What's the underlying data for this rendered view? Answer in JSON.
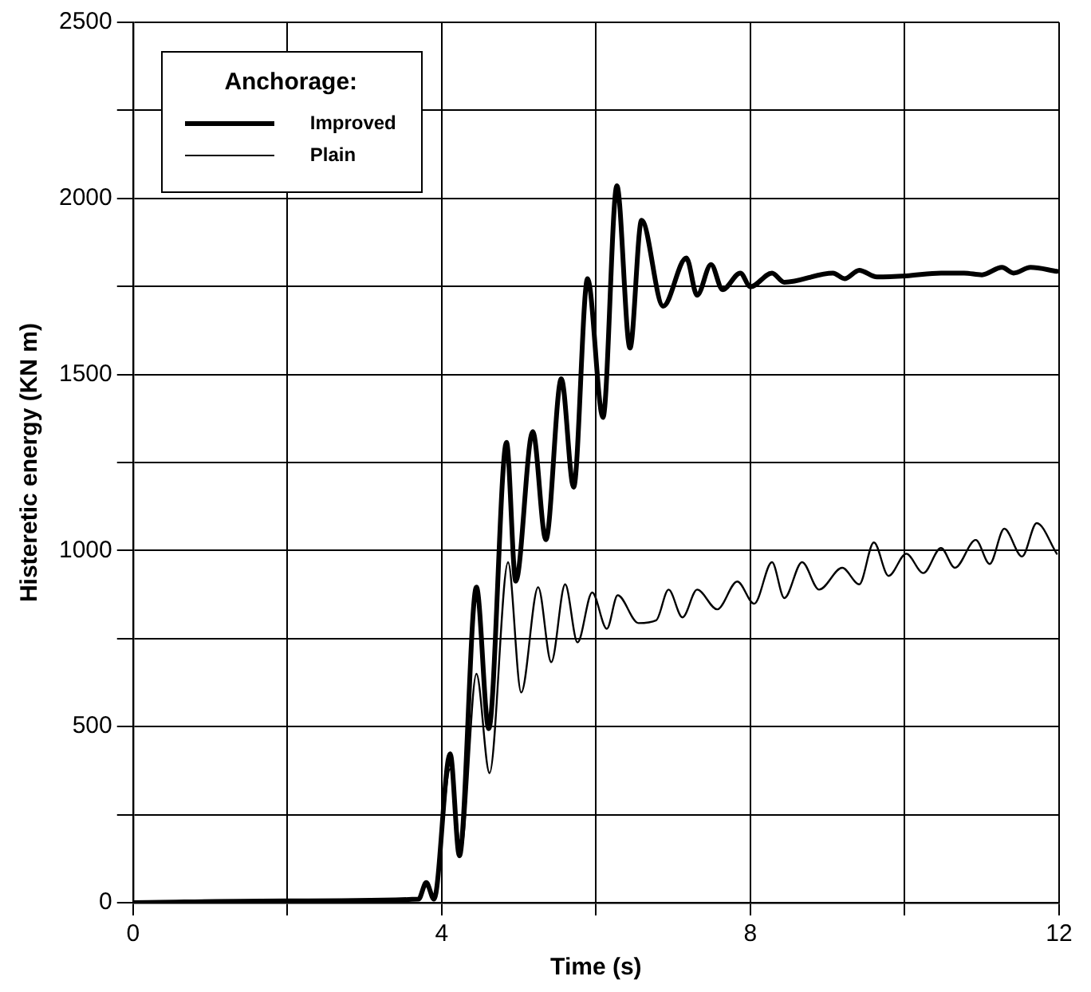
{
  "chart_data": {
    "type": "line",
    "xlabel": "Time (s)",
    "ylabel": "Histeretic energy (KN m)",
    "legend_title": "Anchorage:",
    "legend": "top left",
    "grid": true,
    "marker": "none",
    "line_style": "solid",
    "xlim": [
      0,
      12
    ],
    "xticks": [
      0,
      {
        "value": 2,
        "label": null
      },
      4,
      {
        "value": 6,
        "label": null
      },
      8,
      {
        "value": 10,
        "label": null
      },
      12
    ],
    "ylim": [
      0,
      2500
    ],
    "yticks": [
      0,
      {
        "value": 250,
        "label": null
      },
      500,
      {
        "value": 750,
        "label": null
      },
      1000,
      {
        "value": 1250,
        "label": null
      },
      1500,
      {
        "value": 1750,
        "label": null
      },
      2000,
      {
        "value": 2250,
        "label": null
      },
      2500
    ],
    "series": [
      {
        "name": "Improved",
        "color": "#000000",
        "x": [
          0,
          2,
          3.7,
          3.8,
          3.9,
          4.11,
          4.23,
          4.45,
          4.61,
          4.84,
          4.96,
          5.18,
          5.35,
          5.55,
          5.71,
          5.89,
          6.09,
          6.27,
          6.44,
          6.59,
          6.87,
          7.17,
          7.31,
          7.49,
          7.64,
          7.87,
          8.0,
          8.28,
          8.44,
          9.07,
          9.22,
          9.41,
          9.64,
          10.02,
          10.47,
          10.77,
          11.0,
          11.26,
          11.41,
          11.63,
          11.97
        ],
        "values": [
          0,
          5,
          10,
          57,
          10,
          423,
          133,
          896,
          494,
          1307,
          913,
          1338,
          1031,
          1488,
          1180,
          1772,
          1378,
          2036,
          1575,
          1938,
          1694,
          1831,
          1725,
          1812,
          1741,
          1788,
          1749,
          1788,
          1762,
          1788,
          1772,
          1796,
          1777,
          1780,
          1788,
          1788,
          1783,
          1804,
          1788,
          1804,
          1793
        ]
      },
      {
        "name": "Plain",
        "color": "#000000",
        "x": [
          0,
          2,
          3.7,
          3.8,
          3.9,
          4.11,
          4.25,
          4.45,
          4.62,
          4.86,
          5.03,
          5.25,
          5.42,
          5.6,
          5.76,
          5.95,
          6.14,
          6.28,
          6.55,
          6.78,
          6.94,
          7.12,
          7.31,
          7.57,
          7.83,
          8.05,
          8.28,
          8.44,
          8.67,
          8.89,
          9.19,
          9.41,
          9.6,
          9.79,
          10.02,
          10.24,
          10.47,
          10.65,
          10.92,
          11.1,
          11.29,
          11.52,
          11.71,
          11.97
        ],
        "values": [
          0,
          5,
          10,
          57,
          10,
          380,
          150,
          650,
          368,
          967,
          597,
          896,
          683,
          904,
          739,
          881,
          778,
          873,
          794,
          802,
          889,
          810,
          889,
          833,
          912,
          849,
          967,
          865,
          967,
          889,
          951,
          904,
          1023,
          928,
          991,
          936,
          1007,
          951,
          1030,
          962,
          1062,
          983,
          1078,
          991
        ]
      }
    ]
  }
}
